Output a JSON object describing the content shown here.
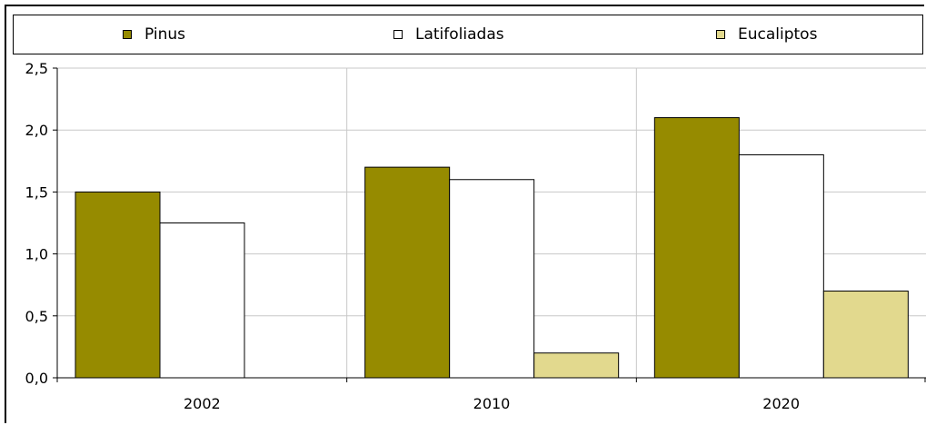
{
  "chart_data": {
    "type": "bar",
    "categories": [
      "2002",
      "2010",
      "2020"
    ],
    "series": [
      {
        "name": "Pinus",
        "values": [
          1.5,
          1.7,
          2.1
        ],
        "color": "#968b00"
      },
      {
        "name": "Latifoliadas",
        "values": [
          1.25,
          1.6,
          1.8
        ],
        "color": "#ffffff"
      },
      {
        "name": "Eucaliptos",
        "values": [
          0.0,
          0.2,
          0.7
        ],
        "color": "#e2d98e"
      }
    ],
    "ylim": [
      0,
      2.5
    ],
    "yticks": [
      "0,0",
      "0,5",
      "1,0",
      "1,5",
      "2,0",
      "2,5"
    ],
    "grid": true,
    "legend_position": "top",
    "title": "",
    "xlabel": "",
    "ylabel": ""
  }
}
